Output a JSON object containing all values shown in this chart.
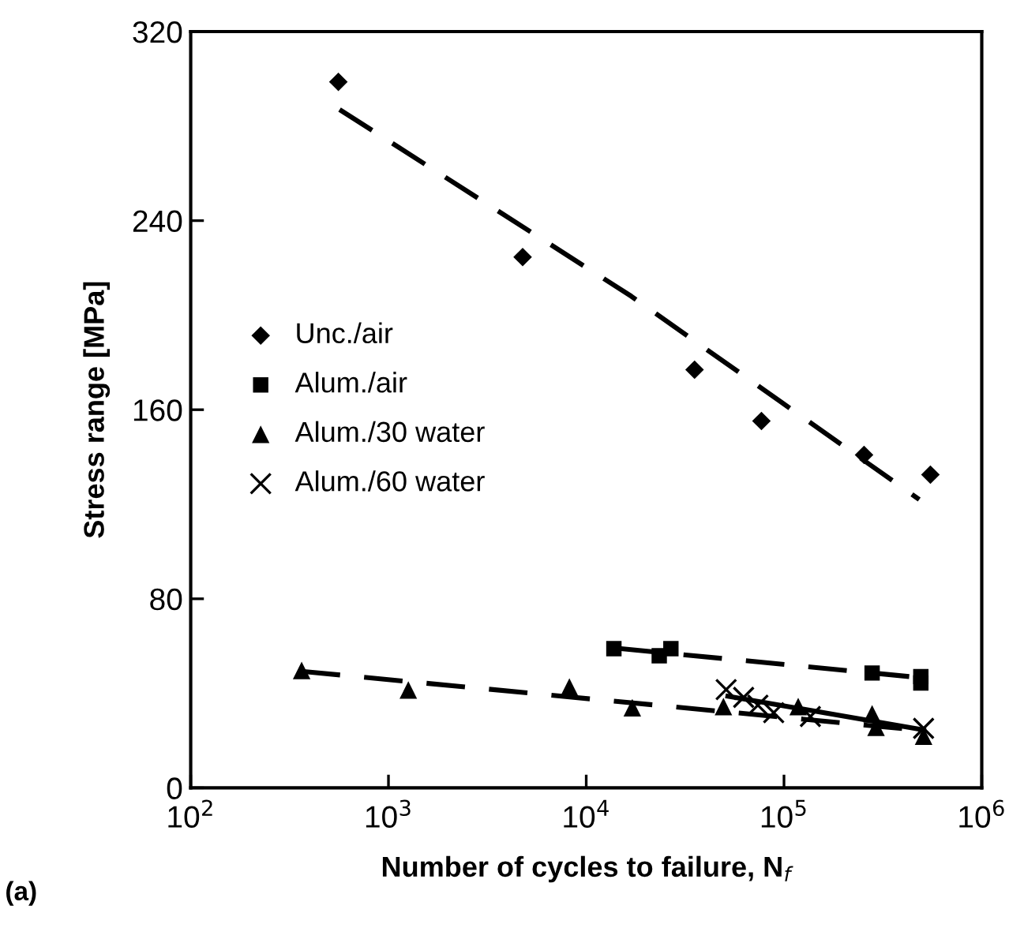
{
  "chart_data": {
    "type": "scatter",
    "xlabel": "Number of cycles to failure, N$_{f}$",
    "ylabel": "Stress range [MPa]",
    "log": "x",
    "xlim": [
      100,
      1000000
    ],
    "ylim": [
      0,
      320
    ],
    "xticks": [
      {
        "value": 100,
        "label": "10$^{2}$"
      },
      {
        "value": 1000,
        "label": "10$^{3}$"
      },
      {
        "value": 10000,
        "label": "10$^{4}$"
      },
      {
        "value": 100000,
        "label": "10$^{5}$"
      },
      {
        "value": 1000000,
        "label": "10$^{6}$"
      }
    ],
    "yticks": [
      0,
      80,
      160,
      240,
      320
    ],
    "grid": false,
    "legend": "left",
    "annotations": [
      "(a)"
    ],
    "series": [
      {
        "name": "Unc./air",
        "marker": "diamond",
        "color": "#000000",
        "x": [
          558,
          4770,
          35300,
          76900,
          254000,
          550000
        ],
        "values": [
          298.7,
          224.6,
          176.9,
          155.2,
          140.9,
          132.5
        ]
      },
      {
        "name": "Alum./air",
        "marker": "square",
        "color": "#000000",
        "x": [
          13800,
          23400,
          26800,
          279000,
          492000,
          492000
        ],
        "values": [
          58.9,
          55.9,
          58.9,
          48.6,
          47.1,
          44.4
        ]
      },
      {
        "name": "Alum./30 water",
        "marker": "triangle",
        "color": "#000000",
        "x": [
          364,
          1260,
          8220,
          17100,
          49400,
          118000,
          279000,
          292000,
          508000
        ],
        "values": [
          49.7,
          41.4,
          42.7,
          33.9,
          34.4,
          34.4,
          31.3,
          25.6,
          21.9
        ]
      },
      {
        "name": "Alum./60 water",
        "marker": "cross",
        "color": "#000000",
        "x": [
          51000,
          62500,
          73800,
          88700,
          136000,
          508000
        ],
        "values": [
          41.6,
          38.3,
          35.0,
          31.8,
          30.2,
          25.2
        ]
      },
      {
        "type": "line",
        "line_style": "dashed",
        "marker": "none",
        "color": "#000000",
        "x": [
          566,
          16900,
          483000
        ],
        "values": [
          287,
          208,
          122
        ]
      },
      {
        "type": "line",
        "line_style": "dashed",
        "marker": "none",
        "color": "#000000",
        "x": [
          15000,
          524000
        ],
        "values": [
          58.9,
          46.4
        ]
      },
      {
        "type": "line",
        "line_style": "dashed",
        "marker": "none",
        "color": "#000000",
        "x": [
          364,
          524000
        ],
        "values": [
          49.3,
          24.1
        ]
      },
      {
        "type": "line",
        "line_style": "solid",
        "marker": "none",
        "color": "#000000",
        "x": [
          52000,
          508000
        ],
        "values": [
          38.8,
          24.5
        ]
      }
    ]
  }
}
